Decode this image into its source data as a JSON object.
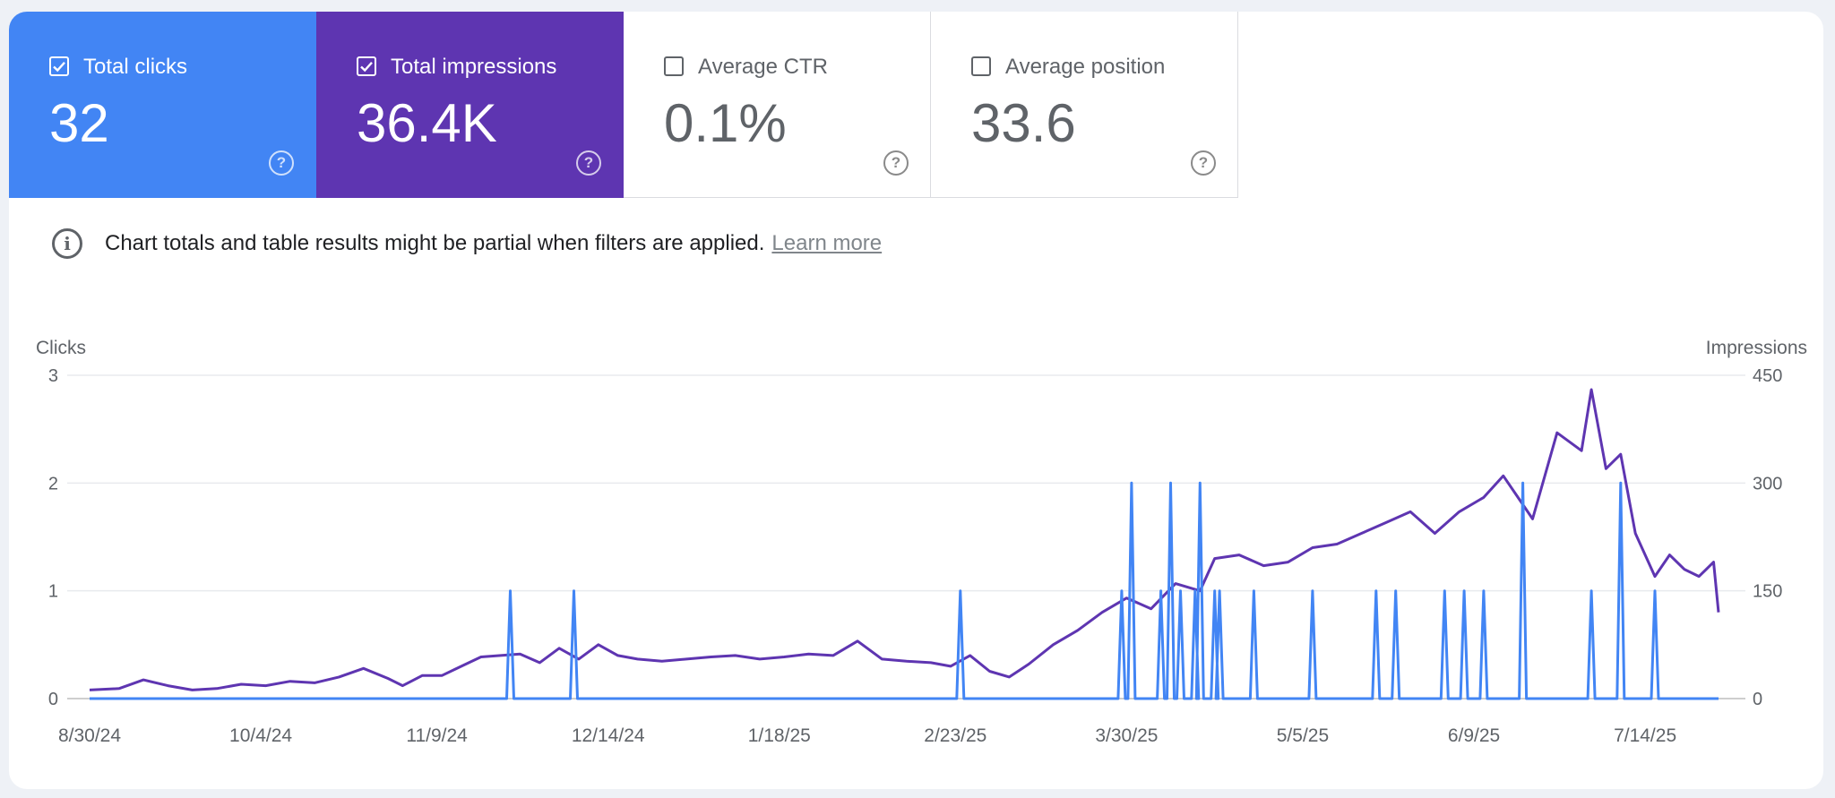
{
  "metrics": [
    {
      "label": "Total clicks",
      "value": "32",
      "checked": true,
      "color": "#4285f4"
    },
    {
      "label": "Total impressions",
      "value": "36.4K",
      "checked": true,
      "color": "#5e35b1"
    },
    {
      "label": "Average CTR",
      "value": "0.1%",
      "checked": false
    },
    {
      "label": "Average position",
      "value": "33.6",
      "checked": false
    }
  ],
  "notice": {
    "text": "Chart totals and table results might be partial when filters are applied.",
    "link": "Learn more"
  },
  "chart_data": {
    "type": "line",
    "left_axis_title": "Clicks",
    "right_axis_title": "Impressions",
    "left_ticks": [
      "3",
      "2",
      "1",
      "0"
    ],
    "right_ticks": [
      "450",
      "300",
      "150",
      "0"
    ],
    "ylim_left": [
      0,
      3
    ],
    "ylim_right": [
      0,
      450
    ],
    "x_tick_labels": [
      "8/30/24",
      "10/4/24",
      "11/9/24",
      "12/14/24",
      "1/18/25",
      "2/23/25",
      "3/30/25",
      "5/5/25",
      "6/9/25",
      "7/14/25"
    ],
    "x_start": "8/30/24",
    "x_end": "7/29/25",
    "grid": true,
    "series": [
      {
        "name": "Clicks",
        "color": "#4285f4",
        "axis": "left",
        "spikes": [
          {
            "date": "11/24/24",
            "value": 1
          },
          {
            "date": "12/7/24",
            "value": 1
          },
          {
            "date": "2/24/25",
            "value": 1
          },
          {
            "date": "3/29/25",
            "value": 1
          },
          {
            "date": "3/31/25",
            "value": 2
          },
          {
            "date": "4/6/25",
            "value": 1
          },
          {
            "date": "4/8/25",
            "value": 2
          },
          {
            "date": "4/10/25",
            "value": 1
          },
          {
            "date": "4/13/25",
            "value": 1
          },
          {
            "date": "4/14/25",
            "value": 2
          },
          {
            "date": "4/17/25",
            "value": 1
          },
          {
            "date": "4/18/25",
            "value": 1
          },
          {
            "date": "4/25/25",
            "value": 1
          },
          {
            "date": "5/7/25",
            "value": 1
          },
          {
            "date": "5/20/25",
            "value": 1
          },
          {
            "date": "5/24/25",
            "value": 1
          },
          {
            "date": "6/3/25",
            "value": 1
          },
          {
            "date": "6/7/25",
            "value": 1
          },
          {
            "date": "6/11/25",
            "value": 1
          },
          {
            "date": "6/19/25",
            "value": 2
          },
          {
            "date": "7/3/25",
            "value": 1
          },
          {
            "date": "7/9/25",
            "value": 2
          },
          {
            "date": "7/16/25",
            "value": 1
          }
        ]
      },
      {
        "name": "Impressions",
        "color": "#5e35b1",
        "axis": "right",
        "points": [
          [
            "8/30/24",
            12
          ],
          [
            "9/5/24",
            14
          ],
          [
            "9/10/24",
            26
          ],
          [
            "9/15/24",
            18
          ],
          [
            "9/20/24",
            12
          ],
          [
            "9/25/24",
            14
          ],
          [
            "9/30/24",
            20
          ],
          [
            "10/5/24",
            18
          ],
          [
            "10/10/24",
            24
          ],
          [
            "10/15/24",
            22
          ],
          [
            "10/20/24",
            30
          ],
          [
            "10/25/24",
            42
          ],
          [
            "10/30/24",
            28
          ],
          [
            "11/2/24",
            18
          ],
          [
            "11/6/24",
            32
          ],
          [
            "11/10/24",
            32
          ],
          [
            "11/14/24",
            45
          ],
          [
            "11/18/24",
            58
          ],
          [
            "11/22/24",
            60
          ],
          [
            "11/26/24",
            62
          ],
          [
            "11/30/24",
            50
          ],
          [
            "12/4/24",
            70
          ],
          [
            "12/8/24",
            55
          ],
          [
            "12/12/24",
            75
          ],
          [
            "12/16/24",
            60
          ],
          [
            "12/20/24",
            55
          ],
          [
            "12/25/24",
            52
          ],
          [
            "12/30/24",
            55
          ],
          [
            "1/4/25",
            58
          ],
          [
            "1/9/25",
            60
          ],
          [
            "1/14/25",
            55
          ],
          [
            "1/19/25",
            58
          ],
          [
            "1/24/25",
            62
          ],
          [
            "1/29/25",
            60
          ],
          [
            "2/3/25",
            80
          ],
          [
            "2/8/25",
            55
          ],
          [
            "2/13/25",
            52
          ],
          [
            "2/18/25",
            50
          ],
          [
            "2/22/25",
            45
          ],
          [
            "2/26/25",
            60
          ],
          [
            "3/2/25",
            38
          ],
          [
            "3/6/25",
            30
          ],
          [
            "3/10/25",
            48
          ],
          [
            "3/15/25",
            75
          ],
          [
            "3/20/25",
            95
          ],
          [
            "3/25/25",
            120
          ],
          [
            "3/30/25",
            140
          ],
          [
            "4/4/25",
            125
          ],
          [
            "4/9/25",
            160
          ],
          [
            "4/14/25",
            150
          ],
          [
            "4/17/25",
            195
          ],
          [
            "4/22/25",
            200
          ],
          [
            "4/27/25",
            185
          ],
          [
            "5/2/25",
            190
          ],
          [
            "5/7/25",
            210
          ],
          [
            "5/12/25",
            215
          ],
          [
            "5/17/25",
            230
          ],
          [
            "5/22/25",
            245
          ],
          [
            "5/27/25",
            260
          ],
          [
            "6/1/25",
            230
          ],
          [
            "6/6/25",
            260
          ],
          [
            "6/11/25",
            280
          ],
          [
            "6/15/25",
            310
          ],
          [
            "6/18/25",
            280
          ],
          [
            "6/21/25",
            250
          ],
          [
            "6/26/25",
            370
          ],
          [
            "7/1/25",
            345
          ],
          [
            "7/3/25",
            430
          ],
          [
            "7/6/25",
            320
          ],
          [
            "7/9/25",
            340
          ],
          [
            "7/12/25",
            230
          ],
          [
            "7/16/25",
            170
          ],
          [
            "7/19/25",
            200
          ],
          [
            "7/22/25",
            180
          ],
          [
            "7/25/25",
            170
          ],
          [
            "7/28/25",
            190
          ],
          [
            "7/29/25",
            120
          ]
        ]
      }
    ]
  }
}
